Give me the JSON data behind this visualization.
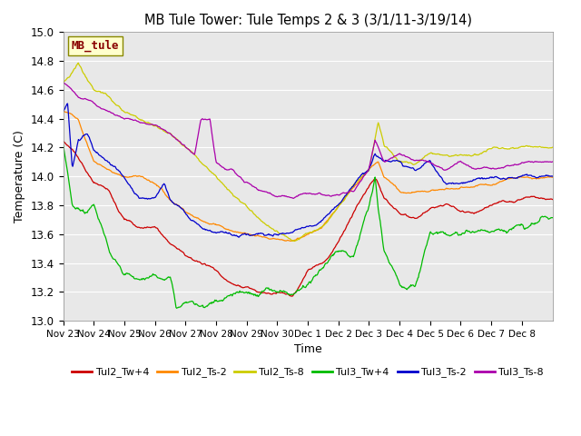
{
  "title": "MB Tule Tower: Tule Temps 2 & 3 (3/1/11-3/19/14)",
  "xlabel": "Time",
  "ylabel": "Temperature (C)",
  "ylim": [
    13.0,
    15.0
  ],
  "yticks": [
    13.0,
    13.2,
    13.4,
    13.6,
    13.8,
    14.0,
    14.2,
    14.4,
    14.6,
    14.8,
    15.0
  ],
  "xtick_labels": [
    "Nov 23",
    "Nov 24",
    "Nov 25",
    "Nov 26",
    "Nov 27",
    "Nov 28",
    "Nov 29",
    "Nov 30",
    "Dec 1",
    "Dec 2",
    "Dec 3",
    "Dec 4",
    "Dec 5",
    "Dec 6",
    "Dec 7",
    "Dec 8"
  ],
  "legend_label": "MB_tule",
  "series_names": [
    "Tul2_Tw+4",
    "Tul2_Ts-2",
    "Tul2_Ts-8",
    "Tul3_Tw+4",
    "Tul3_Ts-2",
    "Tul3_Ts-8"
  ],
  "series_colors": [
    "#cc0000",
    "#ff8800",
    "#cccc00",
    "#00bb00",
    "#0000cc",
    "#aa00aa"
  ],
  "background_color": "#ffffff",
  "plot_bg_color": "#e8e8e8",
  "grid_color": "#ffffff",
  "mb_tule_bg": "#ffffcc",
  "mb_tule_fg": "#880000"
}
